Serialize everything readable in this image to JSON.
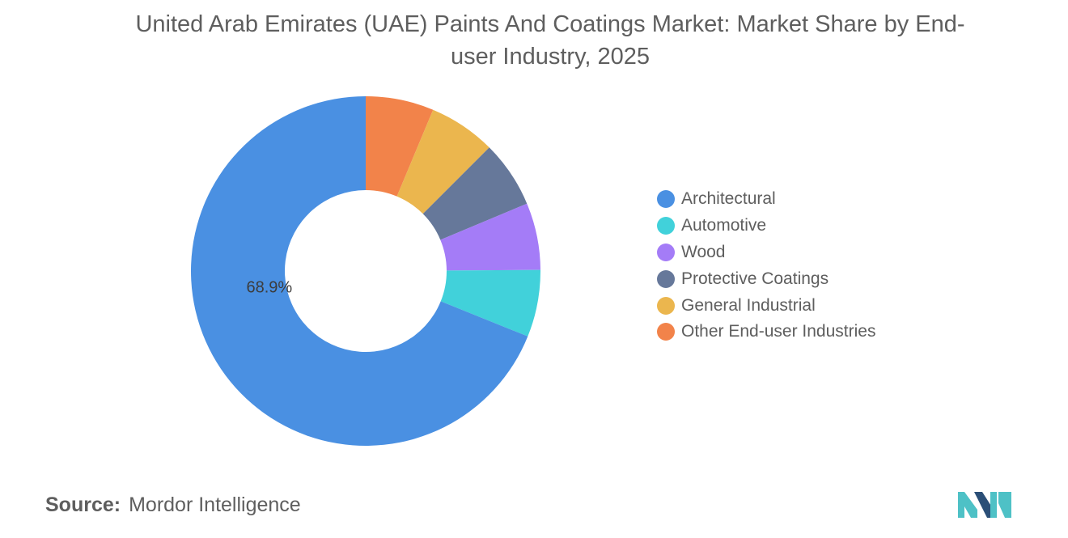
{
  "chart_data": {
    "type": "pie",
    "donut": true,
    "title": "United Arab Emirates (UAE) Paints And Coatings Market: Market Share by End-user Industry, 2025",
    "categories": [
      "Architectural",
      "Automotive",
      "Wood",
      "Protective Coatings",
      "General Industrial",
      "Other End-user Industries"
    ],
    "values": [
      68.9,
      6.2,
      6.2,
      6.2,
      6.2,
      6.3
    ],
    "value_unit": "%",
    "colors": [
      "#4a90e2",
      "#41d1da",
      "#a47cf7",
      "#66789a",
      "#ebb64e",
      "#f2834a"
    ],
    "data_labels": [
      {
        "category": "Architectural",
        "text": "68.9%"
      }
    ],
    "legend_position": "right",
    "start_angle_deg": 0,
    "direction": "clockwise"
  },
  "source": {
    "label": "Source:",
    "name": "Mordor Intelligence"
  },
  "logo": {
    "icon": "mordor-intelligence-logo-icon",
    "colors": [
      "#2b4f77",
      "#4ec1c6"
    ]
  }
}
